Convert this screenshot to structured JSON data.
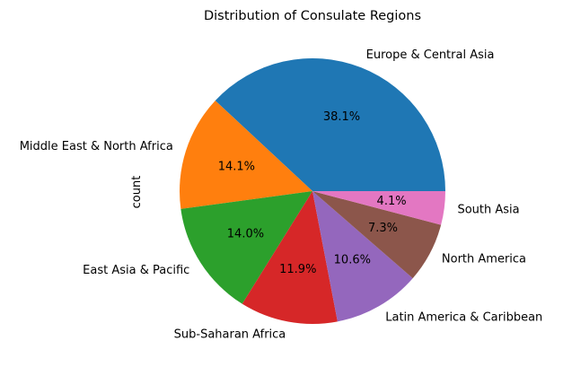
{
  "chart_data": {
    "type": "pie",
    "title": "Distribution of Consulate Regions",
    "ylabel": "count",
    "categories": [
      "Europe & Central Asia",
      "Middle East & North Africa",
      "East Asia & Pacific",
      "Sub-Saharan Africa",
      "Latin America & Caribbean",
      "North America",
      "South Asia"
    ],
    "values": [
      38.1,
      14.1,
      14.0,
      11.9,
      10.6,
      7.3,
      4.1
    ],
    "pct_labels": [
      "38.1%",
      "14.1%",
      "14.0%",
      "11.9%",
      "10.6%",
      "7.3%",
      "4.1%"
    ],
    "colors": [
      "#1f77b4",
      "#ff7f0e",
      "#2ca02c",
      "#d62728",
      "#9467bd",
      "#8c564b",
      "#e377c2"
    ],
    "start_angle": 0,
    "direction": "counterclockwise"
  }
}
